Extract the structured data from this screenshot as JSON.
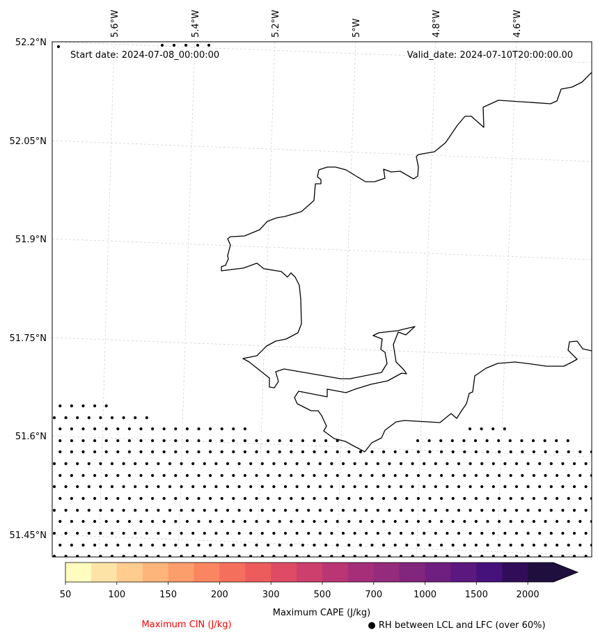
{
  "header": {
    "start_date": "Start date: 2024-07-08_00:00:00",
    "valid_date": "Valid_date: 2024-07-10T20:00:00.00"
  },
  "map": {
    "lon_labels": [
      "5.6°W",
      "5.4°W",
      "5.2°W",
      "5°W",
      "4.8°W",
      "4.6°W"
    ],
    "lat_labels": [
      "52.2°N",
      "52.05°N",
      "51.9°N",
      "51.75°N",
      "51.6°N",
      "51.45°N"
    ],
    "coast_color": "#000000",
    "grid_color": "#cccccc"
  },
  "colorbar": {
    "label": "Maximum CAPE (J/kg)",
    "ticks": [
      "50",
      "100",
      "150",
      "200",
      "300",
      "500",
      "700",
      "1000",
      "1500",
      "2000"
    ],
    "colors": [
      "#fefdbf",
      "#fde4a6",
      "#fecc8f",
      "#feb57b",
      "#fc9d6c",
      "#f98661",
      "#f5705c",
      "#ec5c5c",
      "#df4b64",
      "#cd3f6c",
      "#ba3573",
      "#a62e78",
      "#942b7b",
      "#81257d",
      "#6f1f7f",
      "#5b187e",
      "#45117a",
      "#310d59",
      "#1f0f3e"
    ]
  },
  "legend": {
    "cin_label": "Maximum CIN (J/kg)",
    "rh_label": "● RH between LCL and LFC (over 60%)",
    "cin_color": "#ff0000"
  }
}
